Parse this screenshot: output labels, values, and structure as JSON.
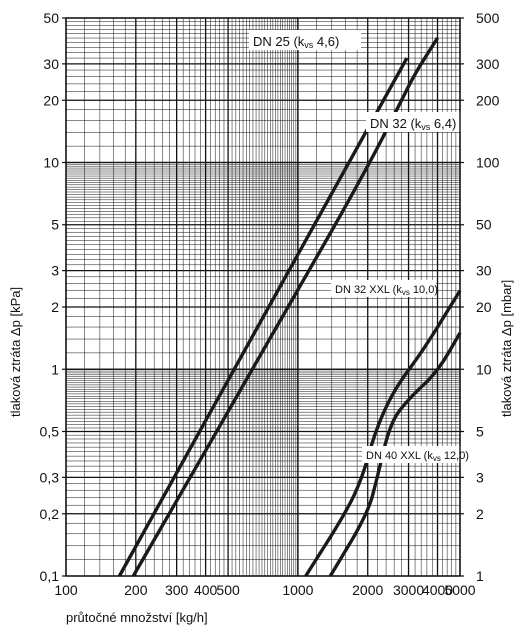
{
  "chart_data": {
    "type": "line",
    "x_scale": "log",
    "y_scale": "log",
    "xlim": [
      100,
      5000
    ],
    "ylim": [
      0.1,
      50
    ],
    "y2lim": [
      1,
      500
    ],
    "grid": true,
    "xlabel": "průtočné množství [kg/h]",
    "ylabel": "tlaková ztráta Δp [kPa]",
    "y2label": "tlaková ztráta Δp [mbar]",
    "x_ticks": [
      {
        "value": 100,
        "label": "100"
      },
      {
        "value": 200,
        "label": "200"
      },
      {
        "value": 300,
        "label": "300"
      },
      {
        "value": 400,
        "label": "400"
      },
      {
        "value": 500,
        "label": "500"
      },
      {
        "value": 1000,
        "label": "1000"
      },
      {
        "value": 2000,
        "label": "2000"
      },
      {
        "value": 3000,
        "label": "3000"
      },
      {
        "value": 4000,
        "label": "4000"
      },
      {
        "value": 5000,
        "label": "5000"
      }
    ],
    "y_ticks": [
      {
        "value": 0.1,
        "label": "0,1"
      },
      {
        "value": 0.2,
        "label": "0,2"
      },
      {
        "value": 0.3,
        "label": "0,3"
      },
      {
        "value": 0.5,
        "label": "0,5"
      },
      {
        "value": 1,
        "label": "1"
      },
      {
        "value": 2,
        "label": "2"
      },
      {
        "value": 3,
        "label": "3"
      },
      {
        "value": 5,
        "label": "5"
      },
      {
        "value": 10,
        "label": "10"
      },
      {
        "value": 20,
        "label": "20"
      },
      {
        "value": 30,
        "label": "30"
      },
      {
        "value": 50,
        "label": "50"
      }
    ],
    "y2_ticks": [
      {
        "value": 1,
        "label": "1"
      },
      {
        "value": 2,
        "label": "2"
      },
      {
        "value": 3,
        "label": "3"
      },
      {
        "value": 5,
        "label": "5"
      },
      {
        "value": 10,
        "label": "10"
      },
      {
        "value": 20,
        "label": "20"
      },
      {
        "value": 30,
        "label": "30"
      },
      {
        "value": 50,
        "label": "50"
      },
      {
        "value": 100,
        "label": "100"
      },
      {
        "value": 200,
        "label": "200"
      },
      {
        "value": 300,
        "label": "300"
      },
      {
        "value": 500,
        "label": "500"
      }
    ],
    "series": [
      {
        "name_main": "DN 25 (k",
        "name_sub": "vs",
        "name_tail": " 4,6)",
        "name_size": "large",
        "points": [
          [
            170,
            0.1
          ],
          [
            2950,
            32
          ]
        ]
      },
      {
        "name_main": "DN 32 (k",
        "name_sub": "vs",
        "name_tail": " 6,4)",
        "name_size": "large",
        "points": [
          [
            195,
            0.1
          ],
          [
            1000,
            2.4
          ],
          [
            2000,
            9.5
          ],
          [
            2800,
            20
          ],
          [
            3200,
            27
          ],
          [
            4000,
            40
          ]
        ]
      },
      {
        "name_main": "DN 32 XXL (k",
        "name_sub": "vs",
        "name_tail": " 10,0)",
        "name_size": "small",
        "points": [
          [
            1080,
            0.1
          ],
          [
            1600,
            0.2
          ],
          [
            1900,
            0.3
          ],
          [
            2150,
            0.5
          ],
          [
            2600,
            0.8
          ],
          [
            3500,
            1.25
          ],
          [
            5000,
            2.4
          ]
        ]
      },
      {
        "name_main": "DN 40 XXL (k",
        "name_sub": "vs",
        "name_tail": " 12,0)",
        "name_size": "small",
        "points": [
          [
            1380,
            0.1
          ],
          [
            2000,
            0.2
          ],
          [
            2200,
            0.3
          ],
          [
            2500,
            0.55
          ],
          [
            3000,
            0.72
          ],
          [
            4000,
            0.97
          ],
          [
            5000,
            1.5
          ]
        ]
      }
    ]
  }
}
